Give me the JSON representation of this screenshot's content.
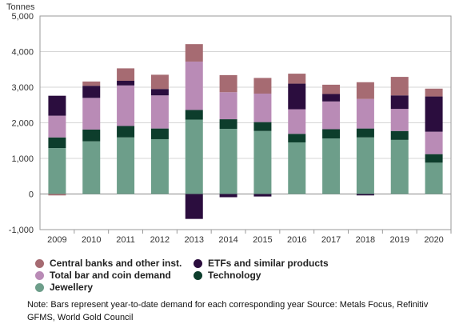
{
  "chart_data": {
    "type": "bar",
    "stacked": true,
    "ylabel": "Tonnes",
    "ylim": [
      -1000,
      5000
    ],
    "yticks": [
      -1000,
      0,
      1000,
      2000,
      3000,
      4000,
      5000
    ],
    "ytick_labels": [
      "-1,000",
      "0",
      "1,000",
      "2,000",
      "3,000",
      "4,000",
      "5,000"
    ],
    "grid": true,
    "categories": [
      "2009",
      "2010",
      "2011",
      "2012",
      "2013",
      "2014",
      "2015",
      "2016",
      "2017",
      "2018",
      "2019",
      "2020"
    ],
    "series": [
      {
        "name": "Jewellery",
        "color": "#6d9e8a",
        "values": [
          1290,
          1480,
          1590,
          1540,
          2090,
          1830,
          1770,
          1450,
          1560,
          1590,
          1520,
          880
        ]
      },
      {
        "name": "Technology",
        "color": "#0d3d2c",
        "values": [
          300,
          330,
          320,
          300,
          270,
          270,
          250,
          240,
          260,
          250,
          250,
          240
        ]
      },
      {
        "name": "Total bar and coin demand",
        "color": "#b98bb6",
        "values": [
          610,
          890,
          1140,
          930,
          1360,
          760,
          800,
          690,
          780,
          830,
          620,
          630
        ]
      },
      {
        "name": "ETFs and similar products",
        "color": "#2b0d3e",
        "values": [
          560,
          340,
          130,
          180,
          -700,
          -90,
          -70,
          720,
          210,
          -40,
          380,
          990
        ]
      },
      {
        "name": "Central banks and other inst.",
        "color": "#a66b72",
        "values": [
          -40,
          120,
          350,
          400,
          490,
          480,
          440,
          280,
          260,
          470,
          520,
          220
        ]
      }
    ]
  },
  "legend": {
    "placement": "bottom",
    "items": [
      {
        "label": "Central banks and other inst.",
        "color": "#a66b72"
      },
      {
        "label": "ETFs and similar products",
        "color": "#2b0d3e"
      },
      {
        "label": "Total bar and coin demand",
        "color": "#b98bb6"
      },
      {
        "label": "Technology",
        "color": "#0d3d2c"
      },
      {
        "label": "Jewellery",
        "color": "#6d9e8a"
      }
    ]
  },
  "note": "Note: Bars represent year-to-date demand for each corresponding year Source: Metals Focus, Refinitiv GFMS, World Gold Council"
}
